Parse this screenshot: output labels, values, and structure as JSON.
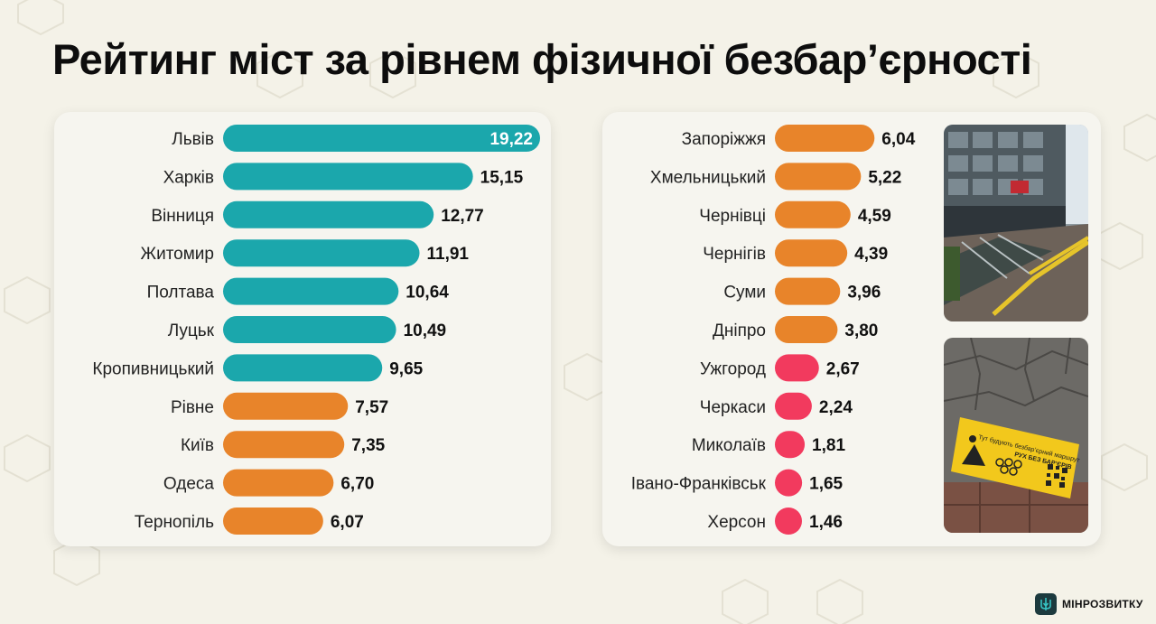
{
  "title": "Рейтинг міст за рівнем фізичної безбар’єрності",
  "brand": {
    "logo_text": "МІНРОЗВИТКУ",
    "logo_icon": "trident-icon"
  },
  "colors": {
    "teal": "#1ba7ac",
    "orange": "#e8842a",
    "pink": "#f23a5e",
    "background": "#f4f2e8",
    "panel": "#f6f5ef"
  },
  "photos": [
    {
      "name": "building-ramp-photo",
      "description_icon": "ramp-photo"
    },
    {
      "name": "pavement-sign-photo",
      "sign_text_1": "Тут будують безбар’єрний маршрут",
      "sign_text_2": "РУХ БЕЗ БАР’ЄРІВ"
    }
  ],
  "chart_data": [
    {
      "type": "bar",
      "orientation": "horizontal",
      "categories": [
        "Львів",
        "Харків",
        "Вінниця",
        "Житомир",
        "Полтава",
        "Луцьк",
        "Кропивницький",
        "Рівне",
        "Київ",
        "Одеса",
        "Тернопіль"
      ],
      "values": [
        19.22,
        15.15,
        12.77,
        11.91,
        10.64,
        10.49,
        9.65,
        7.57,
        7.35,
        6.7,
        6.07
      ],
      "value_labels": [
        "19,22",
        "15,15",
        "12,77",
        "11,91",
        "10,64",
        "10,49",
        "9,65",
        "7,57",
        "7,35",
        "6,70",
        "6,07"
      ],
      "bar_colors": [
        "teal",
        "teal",
        "teal",
        "teal",
        "teal",
        "teal",
        "teal",
        "orange",
        "orange",
        "orange",
        "orange"
      ],
      "xlim": [
        0,
        19.22
      ],
      "grid": false,
      "legend": "none"
    },
    {
      "type": "bar",
      "orientation": "horizontal",
      "categories": [
        "Запоріжжя",
        "Хмельницький",
        "Чернівці",
        "Чернігів",
        "Суми",
        "Дніпро",
        "Ужгород",
        "Черкаси",
        "Миколаїв",
        "Івано-Франківськ",
        "Херсон"
      ],
      "values": [
        6.04,
        5.22,
        4.59,
        4.39,
        3.96,
        3.8,
        2.67,
        2.24,
        1.81,
        1.65,
        1.46
      ],
      "value_labels": [
        "6,04",
        "5,22",
        "4,59",
        "4,39",
        "3,96",
        "3,80",
        "2,67",
        "2,24",
        "1,81",
        "1,65",
        "1,46"
      ],
      "bar_colors": [
        "orange",
        "orange",
        "orange",
        "orange",
        "orange",
        "orange",
        "pink",
        "pink",
        "pink",
        "pink",
        "pink"
      ],
      "xlim": [
        0,
        19.22
      ],
      "grid": false,
      "legend": "none"
    }
  ]
}
